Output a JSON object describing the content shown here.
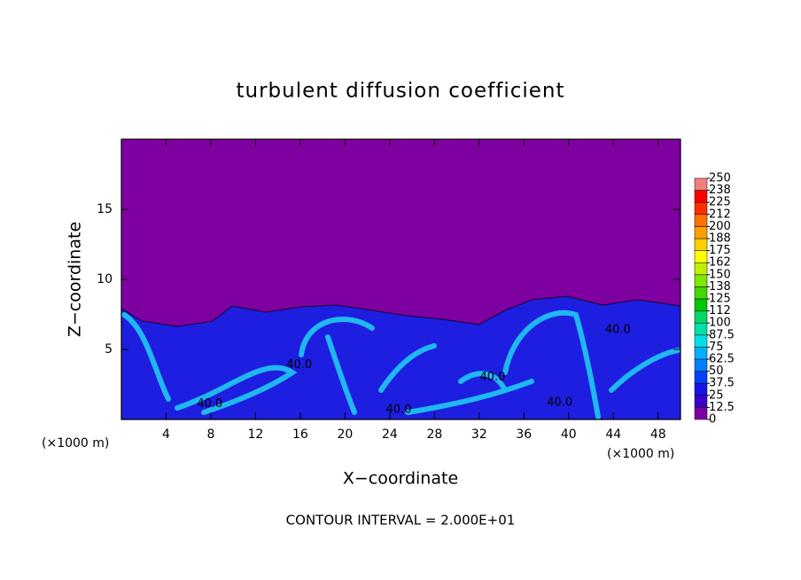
{
  "chart_data": {
    "type": "contour",
    "title": "turbulent diffusion coefficient",
    "x_label": "X−coordinate",
    "y_label": "Z−coordinate",
    "x_unit_left": "(×1000 m)",
    "x_unit_right": "(×1000 m)",
    "footer": "CONTOUR INTERVAL = 2.000E+01",
    "xlim": [
      0,
      50
    ],
    "ylim": [
      0,
      20
    ],
    "xticks": [
      4,
      8,
      12,
      16,
      20,
      24,
      28,
      32,
      36,
      40,
      44,
      48
    ],
    "yticks": [
      5,
      10,
      15
    ],
    "contour_labels": [
      "40.0",
      "40.0",
      "40.0",
      "40.0",
      "40.0",
      "40.0"
    ],
    "colorbar": {
      "levels": [
        0,
        12.5,
        25,
        37.5,
        50,
        62.5,
        75,
        87.5,
        100,
        {
          "value": 112.5,
          "label": "112"
        },
        125,
        {
          "value": 137.5,
          "label": "138"
        },
        150,
        {
          "value": 162.5,
          "label": "162"
        },
        175,
        {
          "value": 187.5,
          "label": "188"
        },
        200,
        {
          "value": 212.5,
          "label": "212"
        },
        225,
        {
          "value": 237.5,
          "label": "238"
        },
        250
      ],
      "colors": [
        "#7f00a0",
        "#3a00c8",
        "#1414e6",
        "#0040ff",
        "#0080ff",
        "#00b0ff",
        "#00e0e8",
        "#00e0a8",
        "#00d868",
        "#00c800",
        "#40d800",
        "#80e800",
        "#c0f000",
        "#ffff00",
        "#ffd000",
        "#ffa000",
        "#ff7000",
        "#ff3000",
        "#ff0000",
        "#f08080"
      ]
    }
  }
}
